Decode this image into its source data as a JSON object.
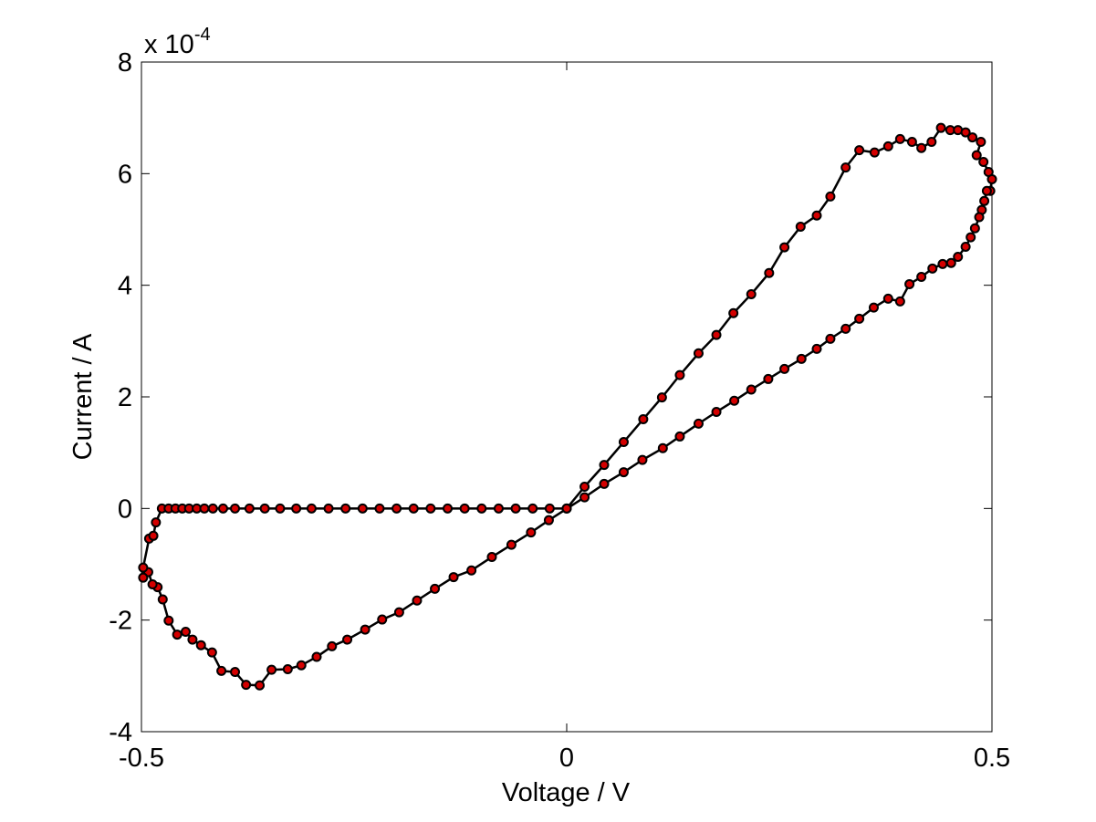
{
  "chart_data": {
    "type": "line",
    "x_label": "Voltage / V",
    "y_label": "Current / A",
    "y_multiplier": {
      "base": "x 10",
      "exponent": "-4"
    },
    "x": [
      0,
      0.021,
      0.044,
      0.067,
      0.09,
      0.112,
      0.133,
      0.155,
      0.176,
      0.196,
      0.217,
      0.238,
      0.256,
      0.275,
      0.294,
      0.31,
      0.328,
      0.344,
      0.362,
      0.378,
      0.392,
      0.406,
      0.417,
      0.429,
      0.44,
      0.451,
      0.46,
      0.469,
      0.477,
      0.487,
      0.482,
      0.49,
      0.496,
      0.5,
      0.498,
      0.494,
      0.491,
      0.488,
      0.485,
      0.48,
      0.475,
      0.469,
      0.46,
      0.452,
      0.442,
      0.43,
      0.417,
      0.403,
      0.392,
      0.378,
      0.361,
      0.344,
      0.328,
      0.31,
      0.294,
      0.276,
      0.256,
      0.237,
      0.217,
      0.197,
      0.176,
      0.155,
      0.133,
      0.113,
      0.089,
      0.067,
      0.044,
      0.021,
      -0.021,
      -0.042,
      -0.065,
      -0.088,
      -0.112,
      -0.133,
      -0.155,
      -0.176,
      -0.197,
      -0.217,
      -0.237,
      -0.258,
      -0.276,
      -0.294,
      -0.312,
      -0.328,
      -0.347,
      -0.361,
      -0.377,
      -0.39,
      -0.406,
      -0.417,
      -0.43,
      -0.44,
      -0.448,
      -0.458,
      -0.468,
      -0.475,
      -0.481,
      -0.487,
      -0.492,
      -0.498,
      -0.498,
      -0.491,
      -0.486,
      -0.483,
      -0.476,
      -0.468,
      -0.46,
      -0.452,
      -0.444,
      -0.435,
      -0.426,
      -0.416,
      -0.404,
      -0.39,
      -0.373,
      -0.355,
      -0.337,
      -0.318,
      -0.3,
      -0.28,
      -0.26,
      -0.24,
      -0.22,
      -0.2,
      -0.18,
      -0.16,
      -0.14,
      -0.12,
      -0.1,
      -0.08,
      -0.06,
      -0.04,
      -0.02,
      0
    ],
    "series": [
      {
        "color": "#000000",
        "marker_color": "#d40000",
        "values": [
          0,
          0.39,
          0.78,
          1.19,
          1.6,
          1.99,
          2.39,
          2.78,
          3.11,
          3.5,
          3.84,
          4.22,
          4.68,
          5.05,
          5.25,
          5.59,
          6.11,
          6.42,
          6.38,
          6.49,
          6.62,
          6.57,
          6.46,
          6.57,
          6.82,
          6.78,
          6.78,
          6.74,
          6.65,
          6.57,
          6.33,
          6.21,
          6.03,
          5.9,
          5.69,
          5.69,
          5.51,
          5.35,
          5.22,
          5.02,
          4.86,
          4.69,
          4.51,
          4.4,
          4.38,
          4.3,
          4.15,
          4.02,
          3.71,
          3.76,
          3.6,
          3.4,
          3.22,
          3.04,
          2.86,
          2.68,
          2.5,
          2.32,
          2.13,
          1.93,
          1.73,
          1.52,
          1.29,
          1.08,
          0.87,
          0.65,
          0.44,
          0.2,
          -0.21,
          -0.43,
          -0.65,
          -0.87,
          -1.11,
          -1.23,
          -1.44,
          -1.65,
          -1.86,
          -1.99,
          -2.17,
          -2.35,
          -2.47,
          -2.66,
          -2.81,
          -2.88,
          -2.89,
          -3.17,
          -3.16,
          -2.93,
          -2.91,
          -2.58,
          -2.45,
          -2.35,
          -2.21,
          -2.26,
          -2.01,
          -1.63,
          -1.41,
          -1.36,
          -1.14,
          -1.24,
          -1.06,
          -0.54,
          -0.49,
          -0.25,
          0,
          0,
          0,
          0,
          0,
          0,
          0,
          0,
          0,
          0,
          0,
          0,
          0,
          0,
          0,
          0,
          0,
          0,
          0,
          0,
          0,
          0,
          0,
          0,
          0,
          0,
          0,
          0,
          0,
          0
        ]
      }
    ],
    "xlim": [
      -0.5,
      0.5
    ],
    "xticks": [
      -0.5,
      0,
      0.5
    ],
    "ylim": [
      -4,
      8
    ],
    "yticks": [
      -4,
      -2,
      0,
      2,
      4,
      6,
      8
    ],
    "grid": false
  }
}
